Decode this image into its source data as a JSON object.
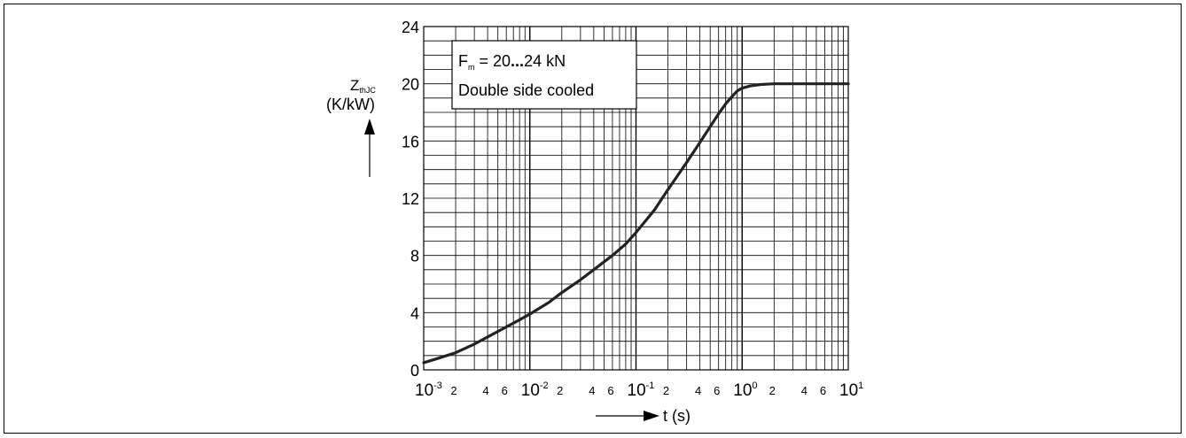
{
  "chart_data": {
    "type": "line",
    "x_scale": "log",
    "xlim": [
      0.001,
      10
    ],
    "ylim": [
      0,
      24
    ],
    "grid": true,
    "x_major_ticks": [
      {
        "base": "10",
        "exp": "-3"
      },
      {
        "base": "10",
        "exp": "-2"
      },
      {
        "base": "10",
        "exp": "-1"
      },
      {
        "base": "10",
        "exp": "0"
      },
      {
        "base": "10",
        "exp": "1"
      }
    ],
    "x_minor_tick_labels": [
      "2",
      "4",
      "6"
    ],
    "y_ticks": [
      "0",
      "4",
      "8",
      "12",
      "16",
      "20",
      "24"
    ],
    "ylabel_main": "Z",
    "ylabel_sub": "thJC",
    "ylabel_unit": "(K/kW)",
    "xlabel": "t (s)",
    "annotation": {
      "line1_main": "F",
      "line1_sub": "m",
      "line1_rest": " = 20",
      "line1_dots": "...",
      "line1_end": "24 kN",
      "line2": "Double side cooled"
    },
    "series": [
      {
        "x": [
          0.001,
          0.0015,
          0.002,
          0.003,
          0.004,
          0.006,
          0.008,
          0.01,
          0.015,
          0.02,
          0.03,
          0.04,
          0.06,
          0.08,
          0.1,
          0.15,
          0.2,
          0.3,
          0.4,
          0.5,
          0.6,
          0.7,
          0.8,
          0.9,
          1.0,
          1.2,
          1.5,
          2,
          3,
          5,
          10
        ],
        "y": [
          0.5,
          0.9,
          1.2,
          1.8,
          2.3,
          3.0,
          3.5,
          3.9,
          4.7,
          5.4,
          6.3,
          7.0,
          8.0,
          8.8,
          9.6,
          11.2,
          12.6,
          14.5,
          15.9,
          17.0,
          17.9,
          18.6,
          19.1,
          19.5,
          19.7,
          19.85,
          19.95,
          20,
          20,
          20,
          20
        ],
        "color": "#222222"
      }
    ]
  }
}
